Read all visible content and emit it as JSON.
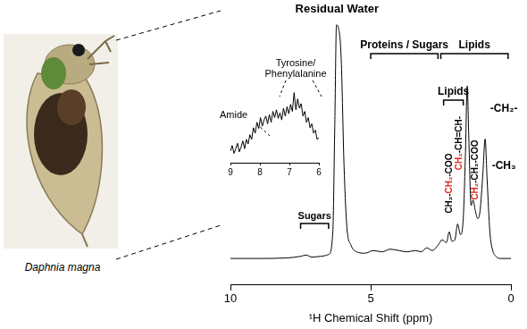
{
  "image_caption": "Daphnia magna",
  "chart_data": [
    {
      "type": "line",
      "x_label": "¹H Chemical Shift (ppm)",
      "x": [
        10,
        9,
        8,
        7.5,
        7.3,
        7.1,
        6.8,
        6.5,
        6.35,
        6.28,
        6.22,
        6.15,
        6.05,
        5.95,
        5.85,
        5.7,
        5.5,
        5.2,
        4.9,
        4.6,
        4.3,
        4.0,
        3.7,
        3.4,
        3.2,
        3.0,
        2.8,
        2.6,
        2.45,
        2.3,
        2.2,
        2.1,
        2.0,
        1.9,
        1.8,
        1.7,
        1.62,
        1.56,
        1.5,
        1.42,
        1.35,
        1.27,
        1.18,
        1.1,
        1.0,
        0.92,
        0.85,
        0.75,
        0.65,
        0.55,
        0.4,
        0
      ],
      "values": [
        10,
        10,
        10.2,
        10.8,
        11.3,
        10.5,
        10.8,
        11.5,
        20,
        60,
        98,
        97,
        85,
        45,
        22,
        15,
        12.5,
        12,
        13,
        12.5,
        13.5,
        13,
        12.5,
        13,
        12.5,
        14,
        13,
        15,
        17,
        16,
        20,
        16.5,
        17,
        23,
        19,
        25,
        50,
        75,
        55,
        30,
        32,
        28,
        25,
        28,
        42,
        55,
        40,
        20,
        13,
        11,
        10,
        10
      ],
      "color": "#000000",
      "xlim": [
        10,
        0
      ],
      "xticks": [
        10,
        5,
        0
      ],
      "ylim": [
        0,
        100
      ],
      "tick_labels": "x",
      "grid": false,
      "regions": [
        {
          "label": "Sugars",
          "from": 7.5,
          "to": 6.5
        },
        {
          "label": "Proteins / Sugars",
          "from": 5.0,
          "to": 2.6
        },
        {
          "label": "Lipids",
          "from": 2.5,
          "to": 0.1
        },
        {
          "label": "Lipids",
          "from": 2.4,
          "to": 1.7
        }
      ],
      "annotations": [
        {
          "text": "Residual Water",
          "x": 6.2
        },
        {
          "text": "-CH₂-",
          "x": 0.25
        },
        {
          "text": "-CH₃",
          "x": 0.25
        },
        {
          "x": 2.2,
          "segments": [
            {
              "text": "CH₂-"
            },
            {
              "text": "CH₂",
              "color": "#e2231a"
            },
            {
              "text": "-COO"
            }
          ]
        },
        {
          "x": 1.85,
          "segments": [
            {
              "text": "CH₂",
              "color": "#e2231a"
            },
            {
              "text": "-CH=CH-"
            }
          ]
        },
        {
          "x": 1.28,
          "segments": [
            {
              "text": "CH₂",
              "color": "#e2231a"
            },
            {
              "text": "-CH₂-COO"
            }
          ]
        }
      ]
    },
    {
      "type": "line",
      "x": [
        9.0,
        8.94,
        8.88,
        8.82,
        8.76,
        8.7,
        8.64,
        8.58,
        8.52,
        8.46,
        8.4,
        8.34,
        8.28,
        8.22,
        8.16,
        8.1,
        8.04,
        7.98,
        7.92,
        7.86,
        7.8,
        7.74,
        7.68,
        7.62,
        7.56,
        7.5,
        7.44,
        7.38,
        7.32,
        7.26,
        7.2,
        7.14,
        7.08,
        7.02,
        6.96,
        6.9,
        6.84,
        6.78,
        6.72,
        6.66,
        6.6,
        6.54,
        6.48,
        6.42,
        6.36,
        6.3,
        6.24,
        6.18,
        6.12,
        6.06,
        6.0
      ],
      "values": [
        15,
        22,
        12,
        18,
        25,
        14,
        20,
        28,
        18,
        30,
        24,
        36,
        30,
        45,
        38,
        52,
        44,
        58,
        47,
        55,
        60,
        50,
        62,
        52,
        66,
        58,
        68,
        57,
        64,
        55,
        70,
        60,
        72,
        63,
        75,
        66,
        90,
        68,
        82,
        70,
        76,
        60,
        66,
        52,
        58,
        45,
        50,
        38,
        42,
        30,
        32
      ],
      "color": "#000000",
      "xlim": [
        9,
        6
      ],
      "xticks": [
        9,
        8,
        7,
        6
      ],
      "ylim": [
        0,
        100
      ],
      "tick_labels": "x",
      "grid": false,
      "annotations": [
        {
          "text": "Amide"
        },
        {
          "text": "Tyrosine/\nPhenylalanine"
        }
      ]
    }
  ]
}
